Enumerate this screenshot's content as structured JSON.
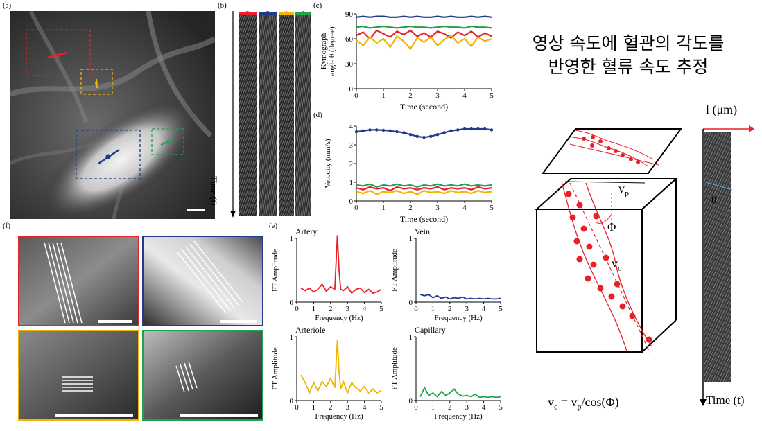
{
  "panels": {
    "a": "(a)",
    "b": "(b)",
    "c": "(c)",
    "d": "(d)",
    "e": "(e)",
    "f": "(f)"
  },
  "colors": {
    "artery": "#e8202a",
    "arteriole": "#f2b400",
    "vein": "#1f3a8a",
    "capillary": "#1fa24a",
    "cyan": "#3aa8e0"
  },
  "kymograph": {
    "ylabel": "Time (t)"
  },
  "chart_data": [
    {
      "id": "c",
      "type": "line",
      "ylabel": "Kymograph angle θ (degree)",
      "xlabel": "Time (second)",
      "xlim": [
        0,
        5
      ],
      "ylim": [
        0,
        90
      ],
      "xticks": [
        "0",
        "1",
        "2",
        "3",
        "4",
        "5"
      ],
      "yticks": [
        "0",
        "30",
        "60",
        "90"
      ],
      "series": [
        {
          "color": "#1f3a8a",
          "values": [
            86,
            87,
            86,
            87,
            87,
            86,
            86,
            87,
            86,
            87,
            86,
            86,
            87,
            86,
            87,
            86,
            86,
            87,
            86,
            87,
            86
          ]
        },
        {
          "color": "#1fa24a",
          "values": [
            74,
            75,
            73,
            74,
            75,
            74,
            73,
            74,
            75,
            74,
            74,
            73,
            74,
            75,
            74,
            74,
            73,
            75,
            74,
            74,
            73
          ]
        },
        {
          "color": "#e8202a",
          "values": [
            64,
            68,
            60,
            70,
            66,
            62,
            69,
            65,
            70,
            63,
            67,
            62,
            69,
            66,
            61,
            68,
            64,
            69,
            62,
            67,
            63
          ]
        },
        {
          "color": "#f2b400",
          "values": [
            58,
            52,
            62,
            55,
            60,
            50,
            63,
            57,
            48,
            61,
            56,
            62,
            52,
            59,
            64,
            55,
            60,
            51,
            62,
            57,
            60
          ]
        }
      ]
    },
    {
      "id": "d",
      "type": "line",
      "ylabel": "Velocity (mm/s)",
      "xlabel": "Time (second)",
      "xlim": [
        0,
        5
      ],
      "ylim": [
        0,
        4
      ],
      "xticks": [
        "0",
        "1",
        "2",
        "3",
        "4",
        "5"
      ],
      "yticks": [
        "0",
        "1",
        "2",
        "3",
        "4"
      ],
      "series": [
        {
          "color": "#1f3a8a",
          "values": [
            3.7,
            3.75,
            3.8,
            3.8,
            3.78,
            3.75,
            3.7,
            3.65,
            3.55,
            3.45,
            3.4,
            3.45,
            3.55,
            3.65,
            3.75,
            3.8,
            3.85,
            3.85,
            3.85,
            3.85,
            3.8
          ]
        },
        {
          "color": "#1fa24a",
          "values": [
            0.85,
            0.8,
            0.9,
            0.75,
            0.85,
            0.8,
            0.9,
            0.8,
            0.85,
            0.75,
            0.85,
            0.8,
            0.9,
            0.8,
            0.85,
            0.8,
            0.9,
            0.8,
            0.85,
            0.8,
            0.85
          ]
        },
        {
          "color": "#e8202a",
          "values": [
            0.7,
            0.6,
            0.75,
            0.65,
            0.7,
            0.55,
            0.75,
            0.65,
            0.7,
            0.6,
            0.7,
            0.65,
            0.75,
            0.6,
            0.7,
            0.65,
            0.7,
            0.6,
            0.75,
            0.65,
            0.7
          ]
        },
        {
          "color": "#f2b400",
          "values": [
            0.5,
            0.4,
            0.55,
            0.35,
            0.5,
            0.45,
            0.55,
            0.4,
            0.5,
            0.35,
            0.55,
            0.45,
            0.5,
            0.4,
            0.55,
            0.45,
            0.5,
            0.4,
            0.55,
            0.45,
            0.5
          ]
        }
      ]
    },
    {
      "id": "e1",
      "type": "line",
      "title": "Artery",
      "color": "#e8202a",
      "ylabel": "FT Amplitude",
      "xlabel": "Frequency (Hz)",
      "xlim": [
        0,
        5
      ],
      "ylim": [
        0,
        1
      ],
      "xticks": [
        "0",
        "1",
        "2",
        "3",
        "4",
        "5"
      ],
      "yticks": [
        "0",
        "1"
      ],
      "x": [
        0.25,
        0.5,
        0.75,
        1.0,
        1.25,
        1.5,
        1.75,
        2.0,
        2.25,
        2.4,
        2.5,
        2.6,
        2.75,
        3.0,
        3.25,
        3.5,
        3.75,
        4.0,
        4.25,
        4.5,
        4.75,
        5.0
      ],
      "values": [
        0.22,
        0.18,
        0.22,
        0.16,
        0.2,
        0.28,
        0.17,
        0.24,
        0.2,
        1.05,
        0.5,
        0.2,
        0.18,
        0.24,
        0.14,
        0.2,
        0.22,
        0.15,
        0.2,
        0.14,
        0.16,
        0.2
      ]
    },
    {
      "id": "e2",
      "type": "line",
      "title": "Vein",
      "color": "#1f3a8a",
      "ylabel": "FT Amplitude",
      "xlabel": "Frequency (Hz)",
      "xlim": [
        0,
        5
      ],
      "ylim": [
        0,
        1
      ],
      "xticks": [
        "0",
        "1",
        "2",
        "3",
        "4",
        "5"
      ],
      "yticks": [
        "0",
        "1"
      ],
      "x": [
        0.25,
        0.5,
        0.75,
        1.0,
        1.25,
        1.5,
        1.75,
        2.0,
        2.25,
        2.5,
        2.75,
        3.0,
        3.25,
        3.5,
        3.75,
        4.0,
        4.25,
        4.5,
        4.75,
        5.0
      ],
      "values": [
        0.12,
        0.1,
        0.12,
        0.07,
        0.1,
        0.06,
        0.08,
        0.05,
        0.07,
        0.06,
        0.08,
        0.05,
        0.06,
        0.05,
        0.06,
        0.05,
        0.06,
        0.05,
        0.05,
        0.06
      ]
    },
    {
      "id": "e3",
      "type": "line",
      "title": "Arteriole",
      "color": "#f2b400",
      "ylabel": "FT Amplitude",
      "xlabel": "Frequency (Hz)",
      "xlim": [
        0,
        5
      ],
      "ylim": [
        0,
        1
      ],
      "xticks": [
        "0",
        "1",
        "2",
        "3",
        "4",
        "5"
      ],
      "yticks": [
        "0",
        "1"
      ],
      "x": [
        0.25,
        0.5,
        0.75,
        1.0,
        1.25,
        1.5,
        1.75,
        2.0,
        2.25,
        2.4,
        2.5,
        2.6,
        2.75,
        3.0,
        3.25,
        3.5,
        3.75,
        4.0,
        4.25,
        4.5,
        4.75,
        5.0
      ],
      "values": [
        0.4,
        0.28,
        0.12,
        0.28,
        0.15,
        0.3,
        0.22,
        0.35,
        0.2,
        0.95,
        0.45,
        0.18,
        0.3,
        0.12,
        0.28,
        0.2,
        0.15,
        0.22,
        0.12,
        0.18,
        0.12,
        0.16
      ]
    },
    {
      "id": "e4",
      "type": "line",
      "title": "Capillary",
      "color": "#1fa24a",
      "ylabel": "FT Amplitude",
      "xlabel": "Frequency (Hz)",
      "xlim": [
        0,
        5
      ],
      "ylim": [
        0,
        1
      ],
      "xticks": [
        "0",
        "1",
        "2",
        "3",
        "4",
        "5"
      ],
      "yticks": [
        "0",
        "1"
      ],
      "x": [
        0.25,
        0.5,
        0.75,
        1.0,
        1.25,
        1.5,
        1.75,
        2.0,
        2.25,
        2.5,
        2.75,
        3.0,
        3.25,
        3.5,
        3.75,
        4.0,
        4.25,
        4.5,
        4.75,
        5.0
      ],
      "values": [
        0.06,
        0.2,
        0.08,
        0.12,
        0.06,
        0.14,
        0.08,
        0.12,
        0.18,
        0.1,
        0.07,
        0.08,
        0.06,
        0.1,
        0.05,
        0.06,
        0.05,
        0.06,
        0.05,
        0.06
      ]
    }
  ],
  "diagram": {
    "title_line1": "영상 속도에 혈관의 각도를",
    "title_line2": "반영한 혈류 속도 추정",
    "vp_label": "v",
    "vp_sub": "p",
    "vc_label": "v",
    "vc_sub": "c",
    "phi_label": "Φ",
    "theta_label": "θ",
    "l_label": "l (μm)",
    "time_label": "Time (t)",
    "formula": "v",
    "formula_sub": "c",
    "formula_rest": " =  v",
    "formula_sub2": "p",
    "formula_end": "/cos(Φ)"
  }
}
